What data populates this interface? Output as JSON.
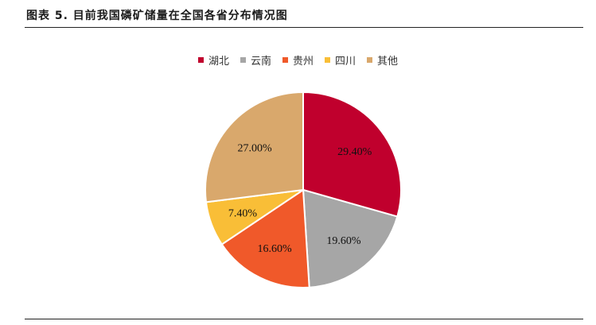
{
  "figure": {
    "title": "图表 5.   目前我国磷矿储量在全国各省分布情况图"
  },
  "chart_data": {
    "type": "pie",
    "title": "",
    "labels": [
      "湖北",
      "云南",
      "贵州",
      "四川",
      "其他"
    ],
    "values": [
      29.4,
      19.6,
      16.6,
      7.4,
      27.0
    ],
    "value_labels": [
      "29.40%",
      "19.60%",
      "16.60%",
      "7.40%",
      "27.00%"
    ],
    "colors": [
      "#C0002D",
      "#A6A6A6",
      "#F0592A",
      "#F9BE37",
      "#D9A86C"
    ],
    "legend_position": "top",
    "start_angle": "12 o'clock",
    "direction": "clockwise"
  }
}
